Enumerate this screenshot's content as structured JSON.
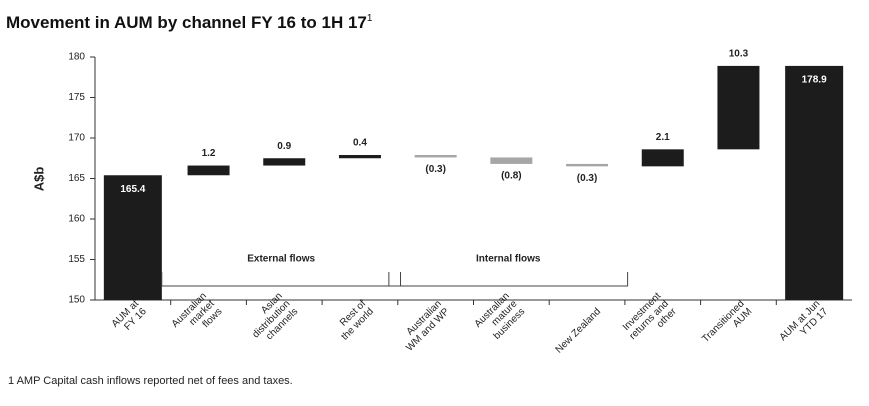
{
  "chart_data": {
    "type": "waterfall",
    "title": "Movement in AUM by channel FY 16 to 1H 17",
    "title_note": "1",
    "ylabel": "A$b",
    "categories": [
      [
        "AUM at",
        "FY 16"
      ],
      [
        "Australian",
        "market",
        "flows"
      ],
      [
        "Asian",
        "distribution",
        "channels"
      ],
      [
        "Rest of",
        "the world"
      ],
      [
        "Australian",
        "WM and WP"
      ],
      [
        "Australian",
        "mature",
        "business"
      ],
      [
        "New Zealand"
      ],
      [
        "Investment",
        "returns and",
        "other"
      ],
      [
        "Transitioned",
        "AUM"
      ],
      [
        "AUM at Jun",
        "YTD 17"
      ]
    ],
    "values": [
      165.4,
      1.2,
      0.9,
      0.4,
      -0.3,
      -0.8,
      -0.3,
      2.1,
      10.3,
      178.9
    ],
    "value_labels": [
      "165.4",
      "1.2",
      "0.9",
      "0.4",
      "(0.3)",
      "(0.8)",
      "(0.3)",
      "2.1",
      "10.3",
      "178.9"
    ],
    "totals": [
      true,
      false,
      false,
      false,
      false,
      false,
      false,
      false,
      false,
      true
    ],
    "colors": {
      "total": "#1c1c1c",
      "increase": "#1c1c1c",
      "decrease": "#a6a6a6"
    },
    "groups": [
      {
        "label": "External flows",
        "members": [
          1,
          2,
          3
        ]
      },
      {
        "label": "Internal flows",
        "members": [
          4,
          5,
          6
        ]
      }
    ],
    "ylim": [
      150,
      180
    ],
    "yticks": [
      150,
      155,
      160,
      165,
      170,
      175,
      180
    ],
    "footnote": "1  AMP Capital cash inflows reported net of fees and taxes."
  }
}
